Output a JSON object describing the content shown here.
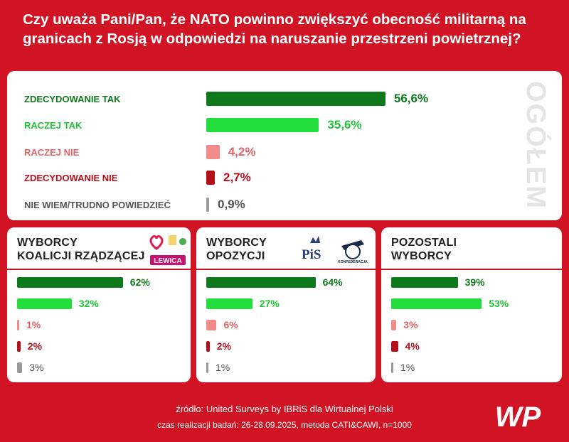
{
  "title": "Czy uważa Pani/Pan, że NATO powinno zwiększyć obecność militarną na granicach z Rosją w odpowiedzi na naruszanie przestrzeni powietrznej?",
  "side_label": "OGÓŁEM",
  "colors": {
    "background": "#d01424",
    "zdecydowanie_tak": "#0e7a1c",
    "raczej_tak": "#22dd3c",
    "raczej_nie": "#f28a8a",
    "zdecydowanie_nie": "#b3101c",
    "nie_wiem": "#999999"
  },
  "chart_data": [
    {
      "type": "bar",
      "title": "OGÓŁEM",
      "categories": [
        "ZDECYDOWANIE TAK",
        "RACZEJ TAK",
        "RACZEJ NIE",
        "ZDECYDOWANIE NIE",
        "NIE WIEM/TRUDNO POWIEDZIEĆ"
      ],
      "values": [
        56.6,
        35.6,
        4.2,
        2.7,
        0.9
      ],
      "value_labels": [
        "56,6%",
        "35,6%",
        "4,2%",
        "2,7%",
        "0,9%"
      ],
      "unit": "%",
      "xlim": [
        0,
        100
      ]
    },
    {
      "type": "bar",
      "title": "WYBORCY KOALICJI RZĄDZĄCEJ",
      "categories": [
        "ZDECYDOWANIE TAK",
        "RACZEJ TAK",
        "RACZEJ NIE",
        "ZDECYDOWANIE NIE",
        "NIE WIEM/TRUDNO POWIEDZIEĆ"
      ],
      "values": [
        62,
        32,
        1,
        2,
        3
      ],
      "value_labels": [
        "62%",
        "32%",
        "1%",
        "2%",
        "3%"
      ],
      "unit": "%"
    },
    {
      "type": "bar",
      "title": "WYBORCY OPOZYCJI",
      "categories": [
        "ZDECYDOWANIE TAK",
        "RACZEJ TAK",
        "RACZEJ NIE",
        "ZDECYDOWANIE NIE",
        "NIE WIEM/TRUDNO POWIEDZIEĆ"
      ],
      "values": [
        64,
        27,
        6,
        2,
        1
      ],
      "value_labels": [
        "64%",
        "27%",
        "6%",
        "2%",
        "1%"
      ],
      "unit": "%"
    },
    {
      "type": "bar",
      "title": "POZOSTALI WYBORCY",
      "categories": [
        "ZDECYDOWANIE TAK",
        "RACZEJ TAK",
        "RACZEJ NIE",
        "ZDECYDOWANIE NIE",
        "NIE WIEM/TRUDNO POWIEDZIEĆ"
      ],
      "values": [
        39,
        53,
        3,
        4,
        1
      ],
      "value_labels": [
        "39%",
        "53%",
        "3%",
        "4%",
        "1%"
      ],
      "unit": "%"
    }
  ],
  "panels": {
    "koalicja": {
      "line1": "WYBORCY",
      "line2": "KOALICJI RZĄDZĄCEJ",
      "logo_text": "LEWICA"
    },
    "opozycja": {
      "line1": "WYBORCY",
      "line2": "OPOZYCJI",
      "logo_pis": "PiS",
      "logo_konf": "KONFEDERACJA"
    },
    "pozostali": {
      "line1": "POZOSTALI",
      "line2": "WYBORCY"
    }
  },
  "footer": {
    "source": "źródło: United Surveys by IBRiS dla Wirtualnej Polski",
    "method": "czas realizacji badań: 26-28.09.2025, metoda CATI&CAWI, n=1000",
    "logo": "WP"
  }
}
